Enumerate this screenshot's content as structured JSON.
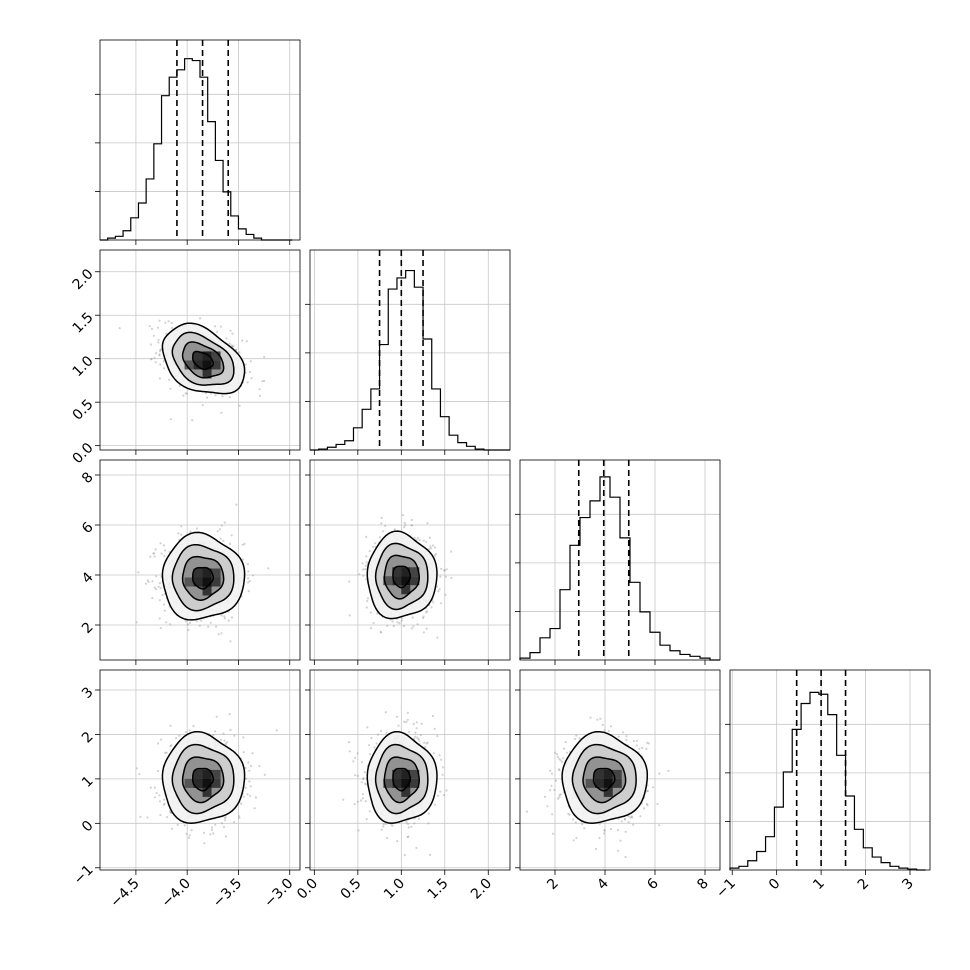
{
  "chart_data": {
    "type": "corner",
    "title": "",
    "parameters": [
      {
        "label": "",
        "quantiles": [
          -4.1,
          -3.85,
          -3.6
        ],
        "range": [
          -4.85,
          -2.9
        ],
        "ticks": [
          -4.5,
          -4.0,
          -3.5,
          -3.0
        ],
        "tick_labels": [
          "−4.5",
          "−4.0",
          "−3.5",
          "−3.0"
        ]
      },
      {
        "label": "",
        "quantiles": [
          0.75,
          1.0,
          1.25
        ],
        "range": [
          -0.05,
          2.25
        ],
        "ticks": [
          0.0,
          0.5,
          1.0,
          1.5,
          2.0
        ],
        "tick_labels": [
          "0.0",
          "0.5",
          "1.0",
          "1.5",
          "2.0"
        ]
      },
      {
        "label": "",
        "quantiles": [
          2.95,
          3.95,
          4.95
        ],
        "range": [
          0.6,
          8.6
        ],
        "ticks": [
          2,
          4,
          6,
          8
        ],
        "tick_labels": [
          "2",
          "4",
          "6",
          "8"
        ]
      },
      {
        "label": "",
        "quantiles": [
          0.45,
          1.0,
          1.55
        ],
        "range": [
          -1.05,
          3.45
        ],
        "ticks": [
          -1,
          0,
          1,
          2,
          3
        ],
        "tick_labels": [
          "−1",
          "0",
          "1",
          "2",
          "3"
        ]
      }
    ],
    "histograms": [
      {
        "param": 0,
        "bins": [
          -4.85,
          -4.775,
          -4.7,
          -4.625,
          -4.55,
          -4.475,
          -4.4,
          -4.325,
          -4.25,
          -4.175,
          -4.1,
          -4.025,
          -3.95,
          -3.875,
          -3.8,
          -3.725,
          -3.65,
          -3.575,
          -3.5,
          -3.425,
          -3.35,
          -3.275,
          -3.2,
          -3.125,
          -3.05,
          -2.975
        ],
        "counts": [
          0,
          0.01,
          0.02,
          0.05,
          0.12,
          0.2,
          0.33,
          0.52,
          0.78,
          0.88,
          0.92,
          0.98,
          0.97,
          0.88,
          0.64,
          0.43,
          0.26,
          0.13,
          0.06,
          0.03,
          0.01,
          0,
          0,
          0,
          0
        ]
      },
      {
        "param": 1,
        "bins": [
          -0.05,
          0.05,
          0.15,
          0.25,
          0.35,
          0.45,
          0.55,
          0.65,
          0.75,
          0.85,
          0.95,
          1.05,
          1.15,
          1.25,
          1.35,
          1.45,
          1.55,
          1.65,
          1.75,
          1.85,
          1.95,
          2.05,
          2.15,
          2.25
        ],
        "counts": [
          0,
          0.005,
          0.015,
          0.03,
          0.05,
          0.12,
          0.22,
          0.33,
          0.57,
          0.87,
          0.93,
          0.97,
          0.88,
          0.6,
          0.33,
          0.18,
          0.08,
          0.04,
          0.02,
          0.005,
          0,
          0,
          0
        ]
      },
      {
        "param": 2,
        "bins": [
          0.6,
          1.0,
          1.4,
          1.8,
          2.2,
          2.6,
          3.0,
          3.4,
          3.8,
          4.2,
          4.6,
          5.0,
          5.4,
          5.8,
          6.2,
          6.6,
          7.0,
          7.4,
          7.8,
          8.2,
          8.6
        ],
        "counts": [
          0.01,
          0.04,
          0.12,
          0.17,
          0.38,
          0.62,
          0.77,
          0.86,
          0.99,
          0.88,
          0.66,
          0.42,
          0.26,
          0.15,
          0.08,
          0.05,
          0.03,
          0.02,
          0.01,
          0
        ]
      },
      {
        "param": 3,
        "bins": [
          -1.05,
          -0.85,
          -0.65,
          -0.45,
          -0.25,
          -0.05,
          0.15,
          0.35,
          0.55,
          0.75,
          0.95,
          1.15,
          1.35,
          1.55,
          1.75,
          1.95,
          2.15,
          2.35,
          2.55,
          2.75,
          2.95,
          3.15,
          3.35
        ],
        "counts": [
          0.01,
          0.02,
          0.05,
          0.1,
          0.18,
          0.34,
          0.53,
          0.76,
          0.9,
          0.96,
          0.95,
          0.84,
          0.62,
          0.4,
          0.22,
          0.12,
          0.07,
          0.04,
          0.02,
          0.01,
          0.005,
          0
        ]
      }
    ],
    "pairs": [
      {
        "x": 0,
        "y": 1,
        "center": [
          -3.85,
          0.98
        ],
        "sigma": [
          0.2,
          0.2
        ],
        "rho": -0.35
      },
      {
        "x": 0,
        "y": 2,
        "center": [
          -3.85,
          3.9
        ],
        "sigma": [
          0.2,
          0.85
        ],
        "rho": 0.0
      },
      {
        "x": 1,
        "y": 2,
        "center": [
          1.0,
          3.95
        ],
        "sigma": [
          0.2,
          0.85
        ],
        "rho": 0.0
      },
      {
        "x": 0,
        "y": 3,
        "center": [
          -3.85,
          1.0
        ],
        "sigma": [
          0.2,
          0.5
        ],
        "rho": 0.0
      },
      {
        "x": 1,
        "y": 3,
        "center": [
          1.0,
          1.0
        ],
        "sigma": [
          0.2,
          0.5
        ],
        "rho": 0.0
      },
      {
        "x": 2,
        "y": 3,
        "center": [
          3.95,
          1.0
        ],
        "sigma": [
          0.85,
          0.5
        ],
        "rho": 0.0
      }
    ],
    "contour_levels_sigma": [
      0.5,
      1.0,
      1.5,
      2.0
    ],
    "grid": true,
    "legend": "none",
    "colors": {
      "line": "#000000",
      "points": "#9a9a9a",
      "grid": "#c8c8c8",
      "density": "#222222"
    }
  }
}
